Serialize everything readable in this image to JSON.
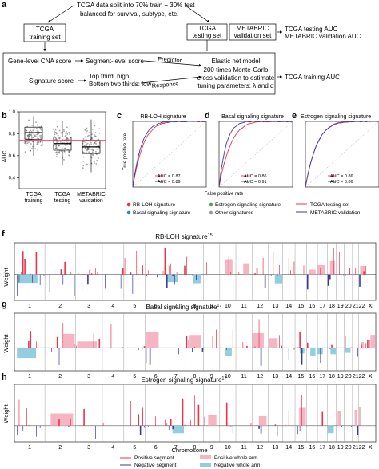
{
  "panel_letters": {
    "a": "a",
    "b": "b",
    "c": "c",
    "d": "d",
    "e": "e",
    "f": "f",
    "g": "g",
    "h": "h"
  },
  "flowchart": {
    "top_text": [
      "TCGA data split into 70% train + 30% test",
      "balanced for survival, subtype, etc."
    ],
    "training_box": [
      "TCGA",
      "training set"
    ],
    "testing_box": [
      "TCGA",
      "testing set"
    ],
    "metabric_box": [
      "METABRIC",
      "validation set"
    ],
    "output_test": [
      "TCGA testing AUC",
      "METABRIC validation AUC"
    ],
    "gene_cna": "Gene-level CNA score",
    "segment_score": "Segment-level score",
    "signature_score": "Signature score",
    "top_third": [
      "Top third: high",
      "Bottom two thirds: low"
    ],
    "predictor": "Predictor",
    "responce": "Responce",
    "model_title": "Elastic net model",
    "model_text": [
      "200 times Monte-Carlo",
      "cross validation to estimate",
      "tuning parameters: λ and α"
    ],
    "output_train": "TCGA training AUC"
  },
  "chart_data": [
    {
      "id": "b",
      "type": "box",
      "ylabel": "AUC",
      "ylim": [
        0.3,
        1.0
      ],
      "yticks": [
        "0.4",
        "0.6",
        "0.8",
        "1.0"
      ],
      "categories": [
        [
          "TCGA",
          "training"
        ],
        [
          "TCGA",
          "testing"
        ],
        [
          "METABRIC",
          "validation"
        ]
      ],
      "boxes": [
        {
          "q1": 0.75,
          "median": 0.81,
          "q3": 0.86,
          "low": 0.6,
          "high": 0.96
        },
        {
          "q1": 0.65,
          "median": 0.71,
          "q3": 0.77,
          "low": 0.52,
          "high": 0.92
        },
        {
          "q1": 0.62,
          "median": 0.68,
          "q3": 0.74,
          "low": 0.45,
          "high": 0.93
        }
      ],
      "reference_line": 0.74
    },
    {
      "id": "c",
      "type": "line",
      "title": "RB-LOH signature",
      "series": [
        {
          "name": "AUC = 0.87",
          "auc": 0.87,
          "color": "#e8344a"
        },
        {
          "name": "AUC = 0.89",
          "auc": 0.89,
          "color": "#3a3a9a"
        }
      ]
    },
    {
      "id": "d",
      "type": "line",
      "title": "Basal signaling signature",
      "series": [
        {
          "name": "AUC = 0.86",
          "auc": 0.86,
          "color": "#e8344a"
        },
        {
          "name": "AUC = 0.91",
          "auc": 0.91,
          "color": "#3a3a9a"
        }
      ]
    },
    {
      "id": "e",
      "type": "line",
      "title": "Estrogen signaling signature",
      "series": [
        {
          "name": "AUC = 0.86",
          "auc": 0.86,
          "color": "#e8344a"
        },
        {
          "name": "AUC = 0.86",
          "auc": 0.86,
          "color": "#3a3a9a"
        }
      ]
    },
    {
      "id": "f",
      "type": "bar",
      "title": "RB-LOH signature",
      "title_sup": "15",
      "ylabel": "Weight",
      "chromosomes": [
        "1",
        "2",
        "3",
        "4",
        "5",
        "6",
        "7",
        "8",
        "9",
        "10",
        "11",
        "12",
        "13",
        "14",
        "15",
        "16",
        "17",
        "18",
        "19",
        "20",
        "21",
        "22",
        "X"
      ]
    },
    {
      "id": "g",
      "type": "bar",
      "title": "Basal signaling signature",
      "title_sup": "17",
      "ylabel": "Weight",
      "chromosomes": [
        "1",
        "2",
        "3",
        "4",
        "5",
        "6",
        "7",
        "8",
        "9",
        "10",
        "11",
        "12",
        "13",
        "14",
        "15",
        "16",
        "17",
        "18",
        "19",
        "20",
        "21",
        "22",
        "X"
      ]
    },
    {
      "id": "h",
      "type": "bar",
      "title": "Estrogen signaling signature",
      "title_sup": "17",
      "ylabel": "Weight",
      "xlabel": "Chromosome",
      "chromosomes": [
        "1",
        "2",
        "3",
        "4",
        "5",
        "6",
        "7",
        "8",
        "9",
        "10",
        "11",
        "12",
        "13",
        "14",
        "15",
        "16",
        "17",
        "18",
        "19",
        "20",
        "21",
        "22",
        "X"
      ]
    }
  ],
  "roc_axes": {
    "ylabel": "True positive rate",
    "xlabel": "False positive rate"
  },
  "roc_legend_cd": [
    "RB-LOH signature",
    "Estrogen signaling signature",
    "Basal signaling signature",
    "Other signatures"
  ],
  "roc_legend_e": [
    "TCGA testing set",
    "METABRIC validation"
  ],
  "segment_legend": [
    "Positive segment",
    "Negative segment",
    "Positive whole arm",
    "Negative whole arm"
  ],
  "colors": {
    "red": "#e8344a",
    "navy": "#3a3a9a",
    "pink": "#f5b5c3",
    "lightblue": "#93cde0",
    "salmon": "#f08a8a",
    "blue": "#3b7dc4",
    "green": "#4aa06a",
    "grey": "#9a9a9a"
  }
}
